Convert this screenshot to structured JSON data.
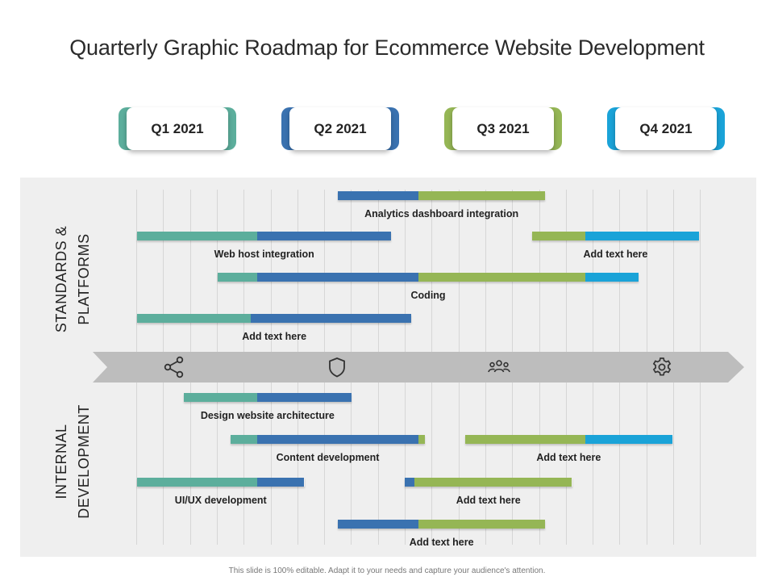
{
  "title": "Quarterly Graphic Roadmap for Ecommerce Website Development",
  "quarters": [
    {
      "label": "Q1 2021",
      "color": "#5cae9c"
    },
    {
      "label": "Q2 2021",
      "color": "#3a72b0"
    },
    {
      "label": "Q3 2021",
      "color": "#95b655"
    },
    {
      "label": "Q4 2021",
      "color": "#1aa3d8"
    }
  ],
  "sections": {
    "top": "STANDARDS & PLATFORMS",
    "bottom": "INTERNAL DEVELOPMENT"
  },
  "timeline_icons": [
    "share-icon",
    "shield-icon",
    "team-icon",
    "gear-icon"
  ],
  "tasks": [
    {
      "label": "Analytics dashboard integration",
      "start": 1.5,
      "end": 3.05,
      "segments": [
        [
          "#3a72b0",
          0.6
        ],
        [
          "#95b655",
          0.95
        ]
      ]
    },
    {
      "label": "Web host integration",
      "start": 0.0,
      "end": 1.9,
      "segments": [
        [
          "#5cae9c",
          0.9
        ],
        [
          "#3a72b0",
          1.0
        ]
      ]
    },
    {
      "label": "Add text here",
      "start": 2.95,
      "end": 4.2,
      "segments": [
        [
          "#95b655",
          0.4
        ],
        [
          "#1aa3d8",
          0.85
        ]
      ]
    },
    {
      "label": "Coding",
      "start": 0.6,
      "end": 3.75,
      "segments": [
        [
          "#5cae9c",
          0.3
        ],
        [
          "#3a72b0",
          1.2
        ],
        [
          "#95b655",
          1.25
        ],
        [
          "#1aa3d8",
          0.4
        ]
      ]
    },
    {
      "label": "Add text here",
      "start": 0.0,
      "end": 2.05,
      "segments": [
        [
          "#5cae9c",
          0.85
        ],
        [
          "#3a72b0",
          1.2
        ]
      ]
    },
    {
      "label": "Design  website architecture",
      "start": 0.35,
      "end": 1.6,
      "segments": [
        [
          "#5cae9c",
          0.55
        ],
        [
          "#3a72b0",
          0.7
        ]
      ]
    },
    {
      "label": "Content development",
      "start": 0.7,
      "end": 2.15,
      "segments": [
        [
          "#5cae9c",
          0.2
        ],
        [
          "#3a72b0",
          1.2
        ],
        [
          "#95b655",
          0.05
        ]
      ]
    },
    {
      "label": "Add text here",
      "start": 2.45,
      "end": 4.0,
      "segments": [
        [
          "#95b655",
          0.9
        ],
        [
          "#1aa3d8",
          0.65
        ]
      ]
    },
    {
      "label": "UI/UX development",
      "start": 0.0,
      "end": 1.25,
      "segments": [
        [
          "#5cae9c",
          0.9
        ],
        [
          "#3a72b0",
          0.35
        ]
      ]
    },
    {
      "label": "Add text here",
      "start": 2.0,
      "end": 3.25,
      "segments": [
        [
          "#3a72b0",
          0.07
        ],
        [
          "#95b655",
          1.18
        ]
      ]
    },
    {
      "label": "Add text here",
      "start": 1.5,
      "end": 3.05,
      "segments": [
        [
          "#3a72b0",
          0.6
        ],
        [
          "#95b655",
          0.95
        ]
      ]
    }
  ],
  "footer": "This slide is 100% editable. Adapt it to your needs and capture your audience's attention."
}
